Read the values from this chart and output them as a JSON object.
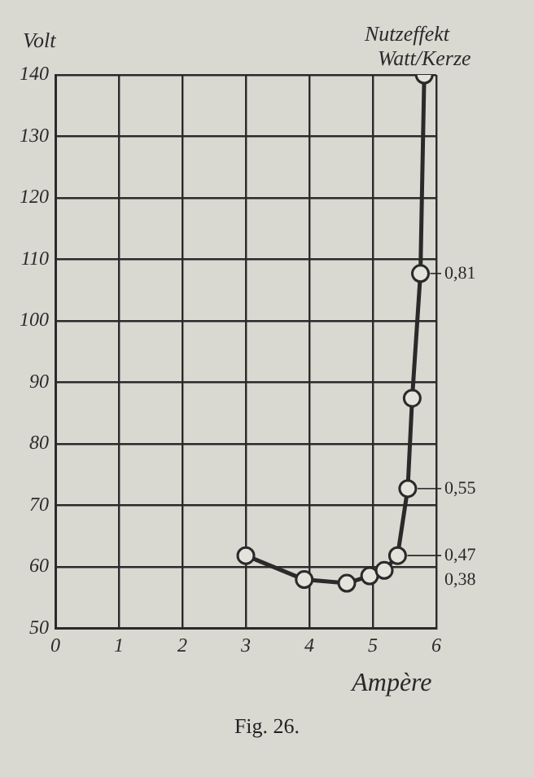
{
  "chart_data": {
    "type": "line",
    "xlabel": "Ampère",
    "ylabel": "Volt",
    "x": [
      3.0,
      3.92,
      4.59,
      4.95,
      5.18,
      5.39,
      5.55,
      5.62,
      5.75,
      5.81
    ],
    "series": [
      {
        "color": "#2a2a2a",
        "values": [
          61.8,
          57.9,
          57.3,
          58.5,
          59.4,
          61.8,
          72.7,
          87.4,
          107.7,
          140
        ]
      }
    ],
    "xlim": [
      0,
      6
    ],
    "xticks": [
      0,
      1,
      2,
      3,
      4,
      5,
      6
    ],
    "ylim": [
      50,
      140
    ],
    "yticks": [
      50,
      60,
      70,
      80,
      90,
      100,
      110,
      120,
      130,
      140
    ],
    "grid": true,
    "marker": "circle",
    "line_style": "solid",
    "legend": false,
    "annotations": [
      "Nutzeffekt Watt/Kerze",
      {
        "text": "0,81",
        "x": 5.75,
        "y": 107.7
      },
      {
        "text": "0,55",
        "x": 5.55,
        "y": 72.7
      },
      {
        "text": "0,47",
        "x": 5.39,
        "y": 61.8
      },
      "0,38",
      "Fig. 26."
    ]
  }
}
